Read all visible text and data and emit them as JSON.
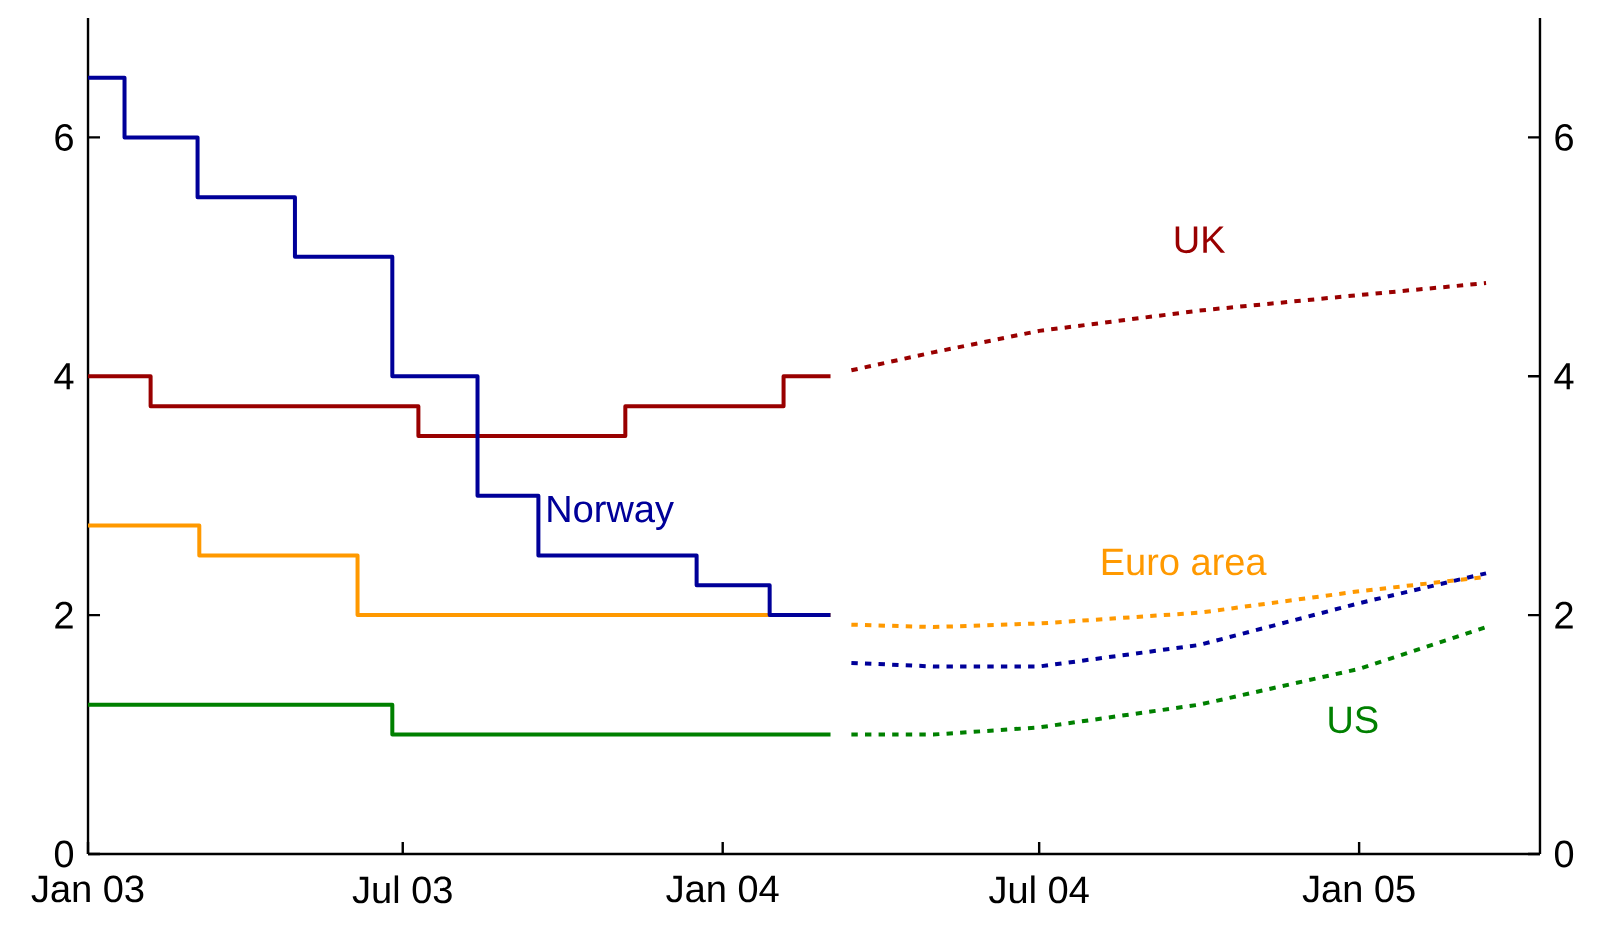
{
  "chart_data": {
    "type": "step",
    "xlim": [
      "2003-01-01",
      "2005-04-15"
    ],
    "xticks": [
      {
        "value": "2003-01-01",
        "label": "Jan 03"
      },
      {
        "value": "2003-07-01",
        "label": "Jul 03"
      },
      {
        "value": "2004-01-01",
        "label": "Jan 04"
      },
      {
        "value": "2004-07-01",
        "label": "Jul 04"
      },
      {
        "value": "2005-01-01",
        "label": "Jan 05"
      }
    ],
    "ylim": [
      0,
      7
    ],
    "yticks": [
      0,
      2,
      4,
      6
    ],
    "y2lim": [
      0,
      7
    ],
    "y2ticks": [
      0,
      2,
      4,
      6
    ],
    "series": [
      {
        "name": "Norway",
        "color": "#000099",
        "x": [
          "2003-01-01",
          "2003-01-22",
          "2003-03-05",
          "2003-04-30",
          "2003-06-25",
          "2003-08-13",
          "2003-09-17",
          "2003-12-17",
          "2004-01-28",
          "2004-03-03"
        ],
        "values": [
          6.5,
          6,
          5.5,
          5,
          4,
          3,
          2.5,
          2.25,
          2,
          2
        ]
      },
      {
        "color": "#000099",
        "type": "line",
        "line_style": "dotted",
        "x": [
          "2004-03-15",
          "2004-05-01",
          "2004-07-01",
          "2004-10-01",
          "2005-01-01",
          "2005-03-15"
        ],
        "values": [
          1.6,
          1.57,
          1.57,
          1.75,
          2.1,
          2.35
        ]
      },
      {
        "color": "#990000",
        "x": [
          "2003-01-01",
          "2003-02-06",
          "2003-07-10",
          "2003-11-06",
          "2004-02-05",
          "2004-03-03"
        ],
        "values": [
          4,
          3.75,
          3.5,
          3.75,
          4,
          4
        ]
      },
      {
        "name": "UK",
        "color": "#990000",
        "type": "line",
        "line_style": "dotted",
        "x": [
          "2004-03-15",
          "2004-05-01",
          "2004-07-01",
          "2004-10-01",
          "2005-01-01",
          "2005-03-15"
        ],
        "values": [
          4.05,
          4.2,
          4.38,
          4.55,
          4.68,
          4.78
        ]
      },
      {
        "color": "#ff9900",
        "x": [
          "2003-01-01",
          "2003-03-06",
          "2003-06-05",
          "2004-03-03"
        ],
        "values": [
          2.75,
          2.5,
          2,
          2
        ]
      },
      {
        "name": "Euro area",
        "color": "#ff9900",
        "type": "line",
        "line_style": "dotted",
        "x": [
          "2004-03-15",
          "2004-05-01",
          "2004-07-01",
          "2004-10-01",
          "2005-01-01",
          "2005-03-15"
        ],
        "values": [
          1.92,
          1.9,
          1.93,
          2.02,
          2.2,
          2.32
        ]
      },
      {
        "color": "#008000",
        "x": [
          "2003-01-01",
          "2003-06-25",
          "2004-03-03"
        ],
        "values": [
          1.25,
          1,
          1
        ]
      },
      {
        "name": "US",
        "color": "#008000",
        "type": "line",
        "line_style": "dotted",
        "x": [
          "2004-03-15",
          "2004-05-01",
          "2004-07-01",
          "2004-10-01",
          "2005-01-01",
          "2005-03-15"
        ],
        "values": [
          1.0,
          1.0,
          1.06,
          1.25,
          1.55,
          1.9
        ]
      }
    ]
  }
}
